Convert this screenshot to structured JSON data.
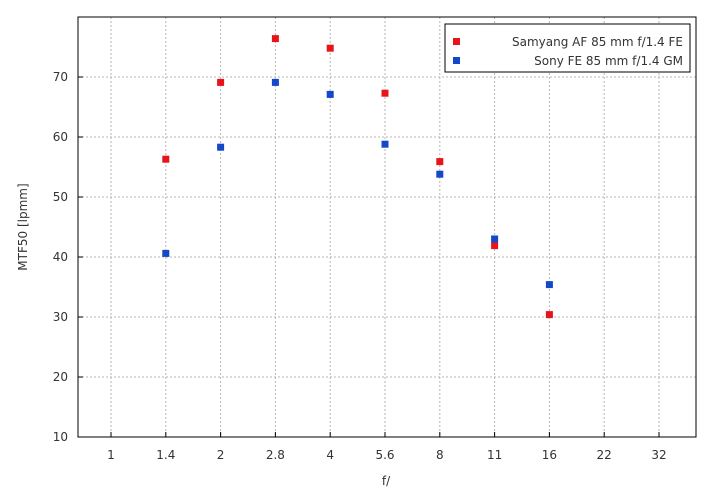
{
  "chart_data": {
    "type": "scatter",
    "xlabel": "f/",
    "ylabel": "MTF50 [lpmm]",
    "x_ticks": [
      "1",
      "1.4",
      "2",
      "2.8",
      "4",
      "5.6",
      "8",
      "11",
      "16",
      "22",
      "32"
    ],
    "ylim": [
      10,
      80
    ],
    "y_ticks": [
      10,
      20,
      30,
      40,
      50,
      60,
      70
    ],
    "grid": true,
    "legend_position": "top-right",
    "series": [
      {
        "name": "Samyang AF 85 mm f/1.4 FE",
        "color": "#e8141b",
        "points": [
          {
            "x": "1.4",
            "y": 56.3
          },
          {
            "x": "2",
            "y": 69.1
          },
          {
            "x": "2.8",
            "y": 76.4
          },
          {
            "x": "4",
            "y": 74.8
          },
          {
            "x": "5.6",
            "y": 67.3
          },
          {
            "x": "8",
            "y": 55.9
          },
          {
            "x": "11",
            "y": 41.9
          },
          {
            "x": "16",
            "y": 30.4
          }
        ]
      },
      {
        "name": "Sony FE 85 mm f/1.4 GM",
        "color": "#1448c8",
        "points": [
          {
            "x": "1.4",
            "y": 40.6
          },
          {
            "x": "2",
            "y": 58.3
          },
          {
            "x": "2.8",
            "y": 69.1
          },
          {
            "x": "4",
            "y": 67.1
          },
          {
            "x": "5.6",
            "y": 58.8
          },
          {
            "x": "8",
            "y": 53.8
          },
          {
            "x": "11",
            "y": 43.0
          },
          {
            "x": "16",
            "y": 35.4
          }
        ]
      }
    ]
  }
}
